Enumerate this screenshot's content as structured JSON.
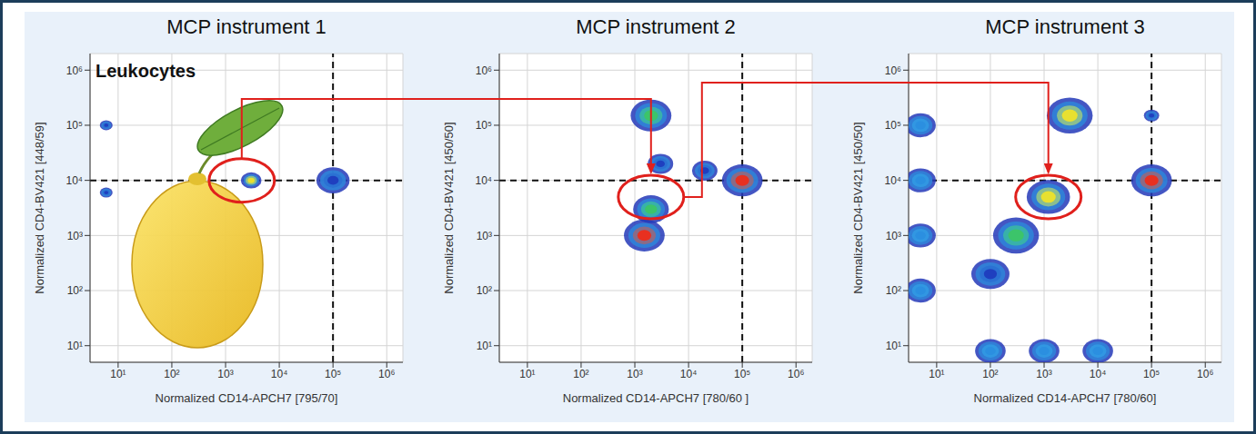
{
  "chart_data": [
    {
      "type": "scatter",
      "title": "MCP instrument 1",
      "annotation": "Leukocytes",
      "x_label": "Normalized CD14-APCH7 [795/70]",
      "y_label": "Normalized CD4-BV421 [448/59]",
      "log": true,
      "grid": true,
      "marker": "density",
      "xlim": [
        3,
        2000000
      ],
      "ylim": [
        5,
        2000000
      ],
      "xticks": [
        {
          "value": 10,
          "label": "10¹"
        },
        {
          "value": 100,
          "label": "10²"
        },
        {
          "value": 1000,
          "label": "10³"
        },
        {
          "value": 10000,
          "label": "10⁴"
        },
        {
          "value": 100000,
          "label": "10⁵"
        },
        {
          "value": 1000000,
          "label": "10⁶"
        }
      ],
      "yticks": [
        {
          "value": 10,
          "label": "10¹"
        },
        {
          "value": 100,
          "label": "10²"
        },
        {
          "value": 1000,
          "label": "10³"
        },
        {
          "value": 10000,
          "label": "10⁴"
        },
        {
          "value": 100000,
          "label": "10⁵"
        },
        {
          "value": 1000000,
          "label": "10⁶"
        }
      ],
      "reference_lines": {
        "x": 100000,
        "y": 10000
      },
      "highlight": {
        "x": 2000,
        "y": 10000
      },
      "x": [
        100000,
        3000,
        6,
        6
      ],
      "y": [
        10000,
        10000,
        100000,
        6000
      ],
      "sizes": [
        1.3,
        0.8,
        0.5,
        0.5
      ],
      "colors": [
        "#1f3fbf",
        "#e8e030",
        "#1f3fbf",
        "#1f3fbf"
      ]
    },
    {
      "type": "scatter",
      "title": "MCP instrument 2",
      "x_label": "Normalized CD14-APCH7 [780/60 ]",
      "y_label": "Normalized CD4-BV421 [450/50]",
      "log": true,
      "grid": true,
      "marker": "density",
      "xlim": [
        3,
        2000000
      ],
      "ylim": [
        5,
        2000000
      ],
      "xticks": [
        {
          "value": 10,
          "label": "10¹"
        },
        {
          "value": 100,
          "label": "10²"
        },
        {
          "value": 1000,
          "label": "10³"
        },
        {
          "value": 10000,
          "label": "10⁴"
        },
        {
          "value": 100000,
          "label": "10⁵"
        },
        {
          "value": 1000000,
          "label": "10⁶"
        }
      ],
      "yticks": [
        {
          "value": 10,
          "label": "10¹"
        },
        {
          "value": 100,
          "label": "10²"
        },
        {
          "value": 1000,
          "label": "10³"
        },
        {
          "value": 10000,
          "label": "10⁴"
        },
        {
          "value": 100000,
          "label": "10⁵"
        },
        {
          "value": 1000000,
          "label": "10⁶"
        }
      ],
      "reference_lines": {
        "x": 100000,
        "y": 10000
      },
      "highlight": {
        "x": 2000,
        "y": 5000
      },
      "x": [
        3000,
        20000,
        2000,
        2000,
        1500,
        100000
      ],
      "y": [
        20000,
        15000,
        150000,
        3000,
        1000,
        10000
      ],
      "sizes": [
        1.0,
        1.0,
        1.6,
        1.4,
        1.6,
        1.6
      ],
      "colors": [
        "#1f3fbf",
        "#1f3fbf",
        "#3cc46a",
        "#3cc46a",
        "#e83020",
        "#e83020"
      ]
    },
    {
      "type": "scatter",
      "title": "MCP instrument 3",
      "x_label": "Normalized CD14-APCH7 [780/60]",
      "y_label": "Normalized CD4-BV421 [450/50]",
      "log": true,
      "grid": true,
      "marker": "density",
      "xlim": [
        3,
        2000000
      ],
      "ylim": [
        5,
        2000000
      ],
      "xticks": [
        {
          "value": 10,
          "label": "10¹"
        },
        {
          "value": 100,
          "label": "10²"
        },
        {
          "value": 1000,
          "label": "10³"
        },
        {
          "value": 10000,
          "label": "10⁴"
        },
        {
          "value": 100000,
          "label": "10⁵"
        },
        {
          "value": 1000000,
          "label": "10⁶"
        }
      ],
      "yticks": [
        {
          "value": 10,
          "label": "10¹"
        },
        {
          "value": 100,
          "label": "10²"
        },
        {
          "value": 1000,
          "label": "10³"
        },
        {
          "value": 10000,
          "label": "10⁴"
        },
        {
          "value": 100000,
          "label": "10⁵"
        },
        {
          "value": 1000000,
          "label": "10⁶"
        }
      ],
      "reference_lines": {
        "x": 100000,
        "y": 10000
      },
      "highlight": {
        "x": 1200,
        "y": 5000
      },
      "x": [
        5,
        5,
        5,
        5,
        100,
        1000,
        10000,
        100,
        3000,
        1200,
        300,
        100000,
        100000
      ],
      "y": [
        100000,
        10000,
        1000,
        100,
        8,
        8,
        8,
        200,
        150000,
        5000,
        1000,
        10000,
        150000
      ],
      "sizes": [
        1.2,
        1.2,
        1.2,
        1.2,
        1.2,
        1.2,
        1.2,
        1.5,
        1.8,
        1.7,
        1.8,
        1.6,
        0.6
      ],
      "colors": [
        "#2b8fe0",
        "#2b8fe0",
        "#2b8fe0",
        "#2b8fe0",
        "#2b8fe0",
        "#2b8fe0",
        "#2b8fe0",
        "#1f3fbf",
        "#e8e030",
        "#e8e030",
        "#3cc46a",
        "#e83020",
        "#1f3fbf"
      ]
    }
  ]
}
